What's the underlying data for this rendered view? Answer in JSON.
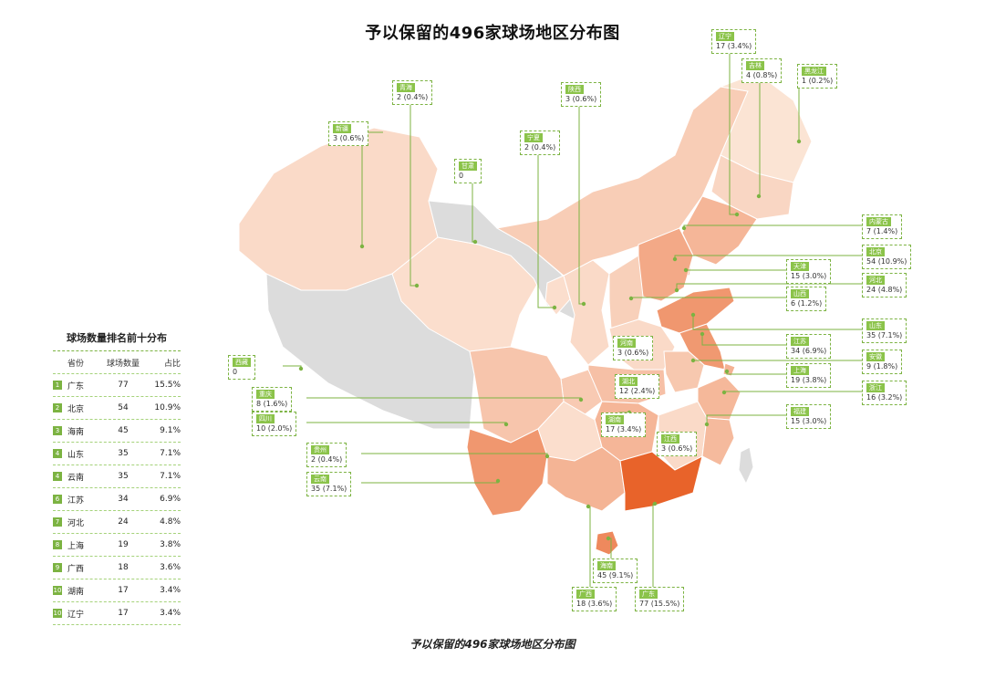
{
  "title": "予以保留的496家球场地区分布图",
  "caption": "予以保留的496家球场地区分布图",
  "colors": {
    "accent": "#7cb342",
    "scale_low": "#fdeee2",
    "scale_high": "#e8632a",
    "no_data": "#dcdcdc"
  },
  "ranking": {
    "title": "球场数量排名前十分布",
    "headers": {
      "province": "省份",
      "count": "球场数量",
      "share": "占比"
    },
    "rows": [
      {
        "rank": "1",
        "province": "广东",
        "count": "77",
        "share": "15.5%"
      },
      {
        "rank": "2",
        "province": "北京",
        "count": "54",
        "share": "10.9%"
      },
      {
        "rank": "3",
        "province": "海南",
        "count": "45",
        "share": "9.1%"
      },
      {
        "rank": "4",
        "province": "山东",
        "count": "35",
        "share": "7.1%"
      },
      {
        "rank": "4",
        "province": "云南",
        "count": "35",
        "share": "7.1%"
      },
      {
        "rank": "6",
        "province": "江苏",
        "count": "34",
        "share": "6.9%"
      },
      {
        "rank": "7",
        "province": "河北",
        "count": "24",
        "share": "4.8%"
      },
      {
        "rank": "8",
        "province": "上海",
        "count": "19",
        "share": "3.8%"
      },
      {
        "rank": "9",
        "province": "广西",
        "count": "18",
        "share": "3.6%"
      },
      {
        "rank": "10",
        "province": "湖南",
        "count": "17",
        "share": "3.4%"
      },
      {
        "rank": "10",
        "province": "辽宁",
        "count": "17",
        "share": "3.4%"
      }
    ]
  },
  "provinces": [
    {
      "id": "xinjiang",
      "name": "新疆",
      "count": 3,
      "label": "3 (0.6%)"
    },
    {
      "id": "xizang",
      "name": "西藏",
      "count": 0,
      "label": "0"
    },
    {
      "id": "qinghai",
      "name": "青海",
      "count": 2,
      "label": "2 (0.4%)"
    },
    {
      "id": "gansu",
      "name": "甘肃",
      "count": 0,
      "label": "0"
    },
    {
      "id": "ningxia",
      "name": "宁夏",
      "count": 2,
      "label": "2 (0.4%)"
    },
    {
      "id": "shaanxi",
      "name": "陕西",
      "count": 3,
      "label": "3 (0.6%)"
    },
    {
      "id": "neimenggu",
      "name": "内蒙古",
      "count": 7,
      "label": "7 (1.4%)"
    },
    {
      "id": "heilongjiang",
      "name": "黑龙江",
      "count": 1,
      "label": "1 (0.2%)"
    },
    {
      "id": "jilin",
      "name": "吉林",
      "count": 4,
      "label": "4 (0.8%)"
    },
    {
      "id": "liaoning",
      "name": "辽宁",
      "count": 17,
      "label": "17 (3.4%)"
    },
    {
      "id": "beijing",
      "name": "北京",
      "count": 54,
      "label": "54 (10.9%)"
    },
    {
      "id": "tianjin",
      "name": "天津",
      "count": 15,
      "label": "15 (3.0%)"
    },
    {
      "id": "hebei",
      "name": "河北",
      "count": 24,
      "label": "24 (4.8%)"
    },
    {
      "id": "shanxi",
      "name": "山西",
      "count": 6,
      "label": "6 (1.2%)"
    },
    {
      "id": "shandong",
      "name": "山东",
      "count": 35,
      "label": "35 (7.1%)"
    },
    {
      "id": "henan",
      "name": "河南",
      "count": 3,
      "label": "3 (0.6%)"
    },
    {
      "id": "jiangsu",
      "name": "江苏",
      "count": 34,
      "label": "34 (6.9%)"
    },
    {
      "id": "anhui",
      "name": "安徽",
      "count": 9,
      "label": "9 (1.8%)"
    },
    {
      "id": "shanghai",
      "name": "上海",
      "count": 19,
      "label": "19 (3.8%)"
    },
    {
      "id": "zhejiang",
      "name": "浙江",
      "count": 16,
      "label": "16 (3.2%)"
    },
    {
      "id": "hubei",
      "name": "湖北",
      "count": 12,
      "label": "12 (2.4%)"
    },
    {
      "id": "chongqing",
      "name": "重庆",
      "count": 8,
      "label": "8 (1.6%)"
    },
    {
      "id": "sichuan",
      "name": "四川",
      "count": 10,
      "label": "10 (2.0%)"
    },
    {
      "id": "hunan",
      "name": "湖南",
      "count": 17,
      "label": "17 (3.4%)"
    },
    {
      "id": "jiangxi",
      "name": "江西",
      "count": 3,
      "label": "3 (0.6%)"
    },
    {
      "id": "fujian",
      "name": "福建",
      "count": 15,
      "label": "15 (3.0%)"
    },
    {
      "id": "guizhou",
      "name": "贵州",
      "count": 2,
      "label": "2 (0.4%)"
    },
    {
      "id": "yunnan",
      "name": "云南",
      "count": 35,
      "label": "35 (7.1%)"
    },
    {
      "id": "guangxi",
      "name": "广西",
      "count": 18,
      "label": "18 (3.6%)"
    },
    {
      "id": "guangdong",
      "name": "广东",
      "count": 77,
      "label": "77 (15.5%)"
    },
    {
      "id": "hainan",
      "name": "海南",
      "count": 45,
      "label": "45 (9.1%)"
    }
  ]
}
